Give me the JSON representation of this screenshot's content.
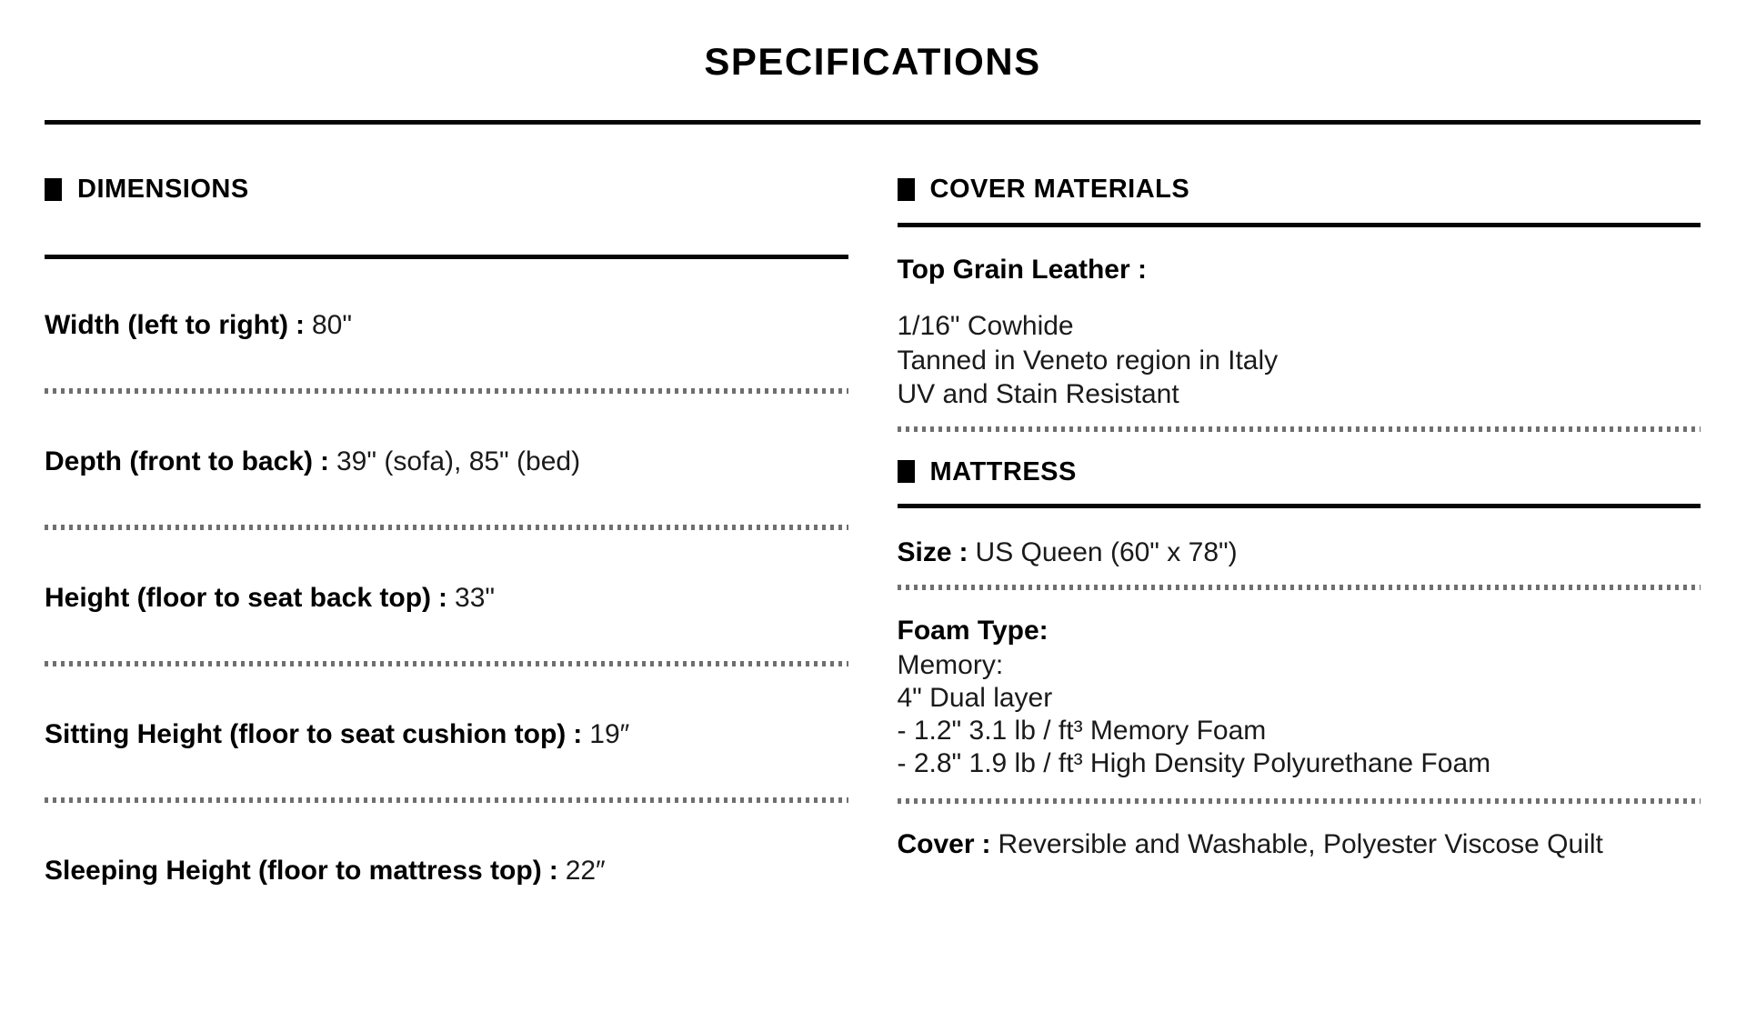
{
  "title": "SPECIFICATIONS",
  "dimensions": {
    "header": "DIMENSIONS",
    "rows": [
      {
        "label": "Width (left to right)",
        "sep": ":",
        "value": "80\""
      },
      {
        "label": "Depth (front to back)",
        "sep": ":",
        "value": "39\" (sofa), 85\" (bed)"
      },
      {
        "label": "Height (floor to seat back top)",
        "sep": ":",
        "value": "33\""
      },
      {
        "label": "Sitting Height (floor to seat cushion top)",
        "sep": ":",
        "value": "19″"
      },
      {
        "label": "Sleeping Height (floor to mattress top)",
        "sep": ":",
        "value": "22″"
      }
    ]
  },
  "cover_materials": {
    "header": "COVER MATERIALS",
    "leather_heading": "Top Grain Leather :",
    "leather_lines": [
      "1/16\" Cowhide",
      "Tanned in Veneto region in Italy",
      "UV and Stain Resistant"
    ]
  },
  "mattress": {
    "header": "MATTRESS",
    "size": {
      "label": "Size",
      "sep": ":",
      "value": "US Queen (60\" x 78\")"
    },
    "foam": {
      "label": "Foam Type",
      "sep": ":",
      "lines": [
        "Memory:",
        "4\" Dual layer",
        "- 1.2\" 3.1 lb / ft³ Memory Foam",
        "- 2.8\" 1.9 lb / ft³ High Density Polyurethane Foam"
      ]
    },
    "cover": {
      "label": "Cover",
      "sep": ":",
      "value": "Reversible and Washable, Polyester Viscose Quilt"
    }
  }
}
